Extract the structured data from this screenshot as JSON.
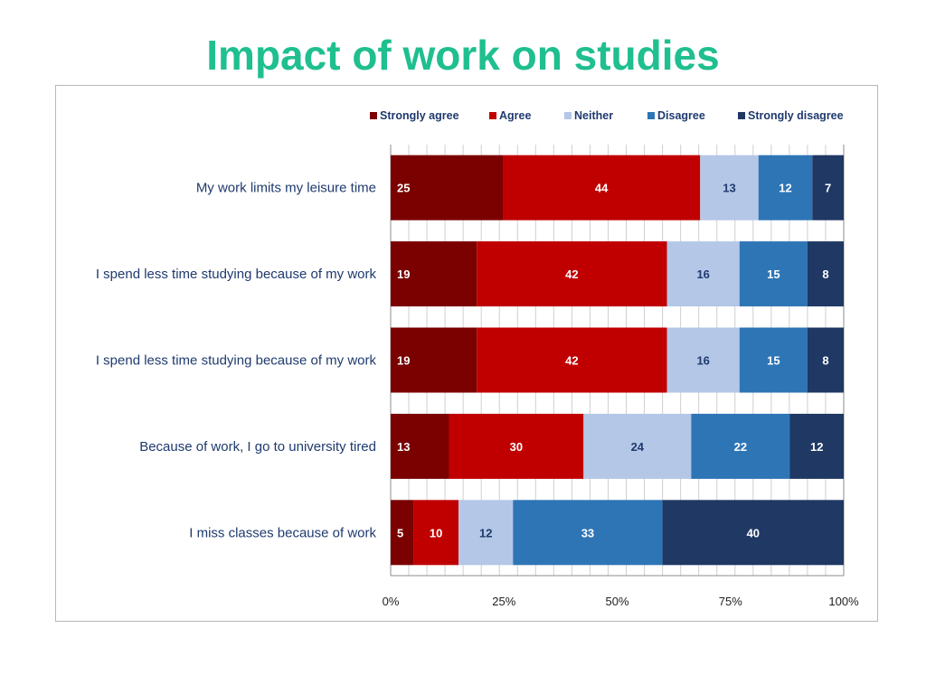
{
  "slide": {
    "title": "Impact of work on studies"
  },
  "chart_data": {
    "type": "bar",
    "orientation": "horizontal",
    "stacked": "percent",
    "categories": [
      "My work limits my leisure time",
      "I spend less time studying because of my work",
      "I spend less time studying because of my work",
      "Because of work, I go to university tired",
      "I miss classes because of work"
    ],
    "series": [
      {
        "name": "Strongly agree",
        "color": "#7b0000",
        "label_color": "#ffffff",
        "values": [
          25,
          19,
          19,
          13,
          5
        ]
      },
      {
        "name": "Agree",
        "color": "#c00000",
        "label_color": "#ffffff",
        "values": [
          44,
          42,
          42,
          30,
          10
        ]
      },
      {
        "name": "Neither",
        "color": "#b4c7e7",
        "label_color": "#1f3a6e",
        "values": [
          13,
          16,
          16,
          24,
          12
        ]
      },
      {
        "name": "Disagree",
        "color": "#2e75b6",
        "label_color": "#ffffff",
        "values": [
          12,
          15,
          15,
          22,
          33
        ]
      },
      {
        "name": "Strongly disagree",
        "color": "#1f3864",
        "label_color": "#ffffff",
        "values": [
          7,
          8,
          8,
          12,
          40
        ]
      }
    ],
    "x_ticks": [
      "0%",
      "25%",
      "50%",
      "75%",
      "100%"
    ],
    "xlim": [
      0,
      100
    ],
    "legend_position": "top",
    "grid": true,
    "xlabel": "",
    "ylabel": ""
  }
}
